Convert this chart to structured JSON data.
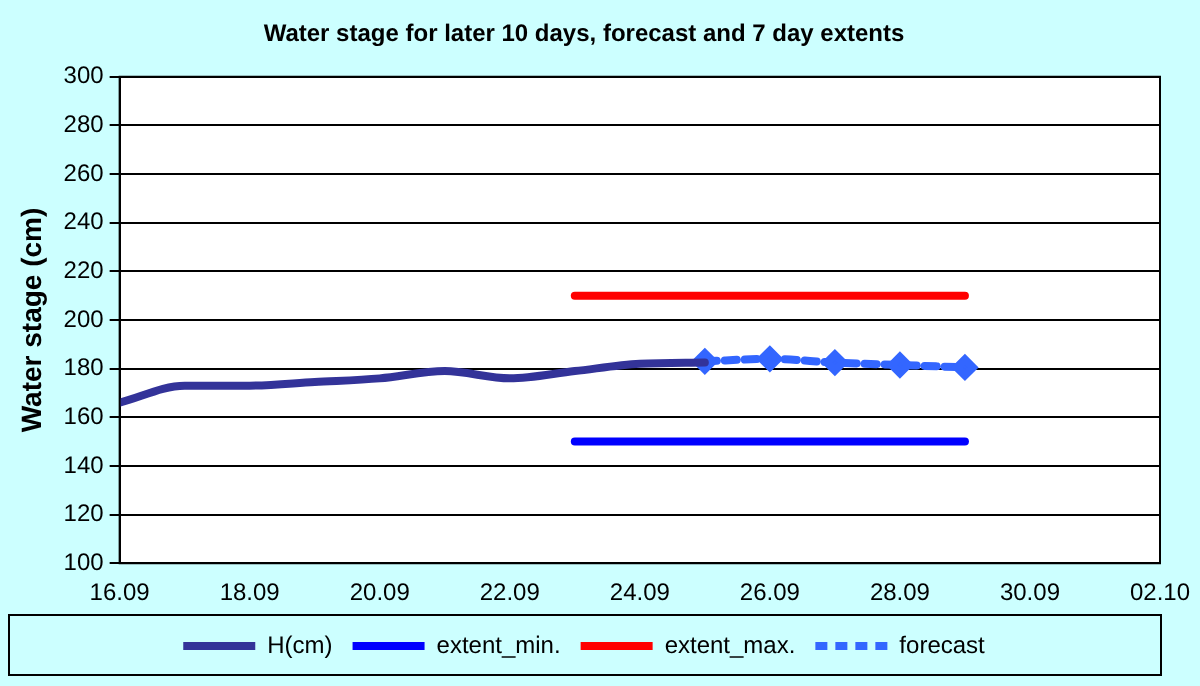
{
  "chart_data": {
    "type": "line",
    "title": "Water stage for later 10 days, forecast and 7 day extents",
    "ylabel": "Water stage (cm)",
    "xlim": [
      "--09-16",
      "--10-02"
    ],
    "xticks": [
      {
        "value": "--09-16",
        "label": "16.09"
      },
      {
        "value": "--09-18",
        "label": "18.09"
      },
      {
        "value": "--09-20",
        "label": "20.09"
      },
      {
        "value": "--09-22",
        "label": "22.09"
      },
      {
        "value": "--09-24",
        "label": "24.09"
      },
      {
        "value": "--09-26",
        "label": "26.09"
      },
      {
        "value": "--09-28",
        "label": "28.09"
      },
      {
        "value": "--09-30",
        "label": "30.09"
      },
      {
        "value": "--10-02",
        "label": "02.10"
      }
    ],
    "ylim": [
      100,
      300
    ],
    "yticks": [
      100,
      120,
      140,
      160,
      180,
      200,
      220,
      240,
      260,
      280,
      300
    ],
    "grid": "y",
    "legend": "bottom",
    "series": [
      {
        "name": "H(cm)",
        "color": "#333399",
        "marker": "none",
        "line_style": "solid",
        "x": [
          "--09-16",
          "--09-17",
          "--09-18",
          "--09-19",
          "--09-20",
          "--09-21",
          "--09-22",
          "--09-23",
          "--09-24",
          "--09-25"
        ],
        "values": [
          166,
          173,
          173,
          174.5,
          176,
          179,
          176,
          179,
          182,
          182.5
        ]
      },
      {
        "name": "extent_min.",
        "color": "#0000ff",
        "marker": "none",
        "line_style": "solid",
        "x": [
          "--09-23",
          "--09-29"
        ],
        "values": [
          150,
          150
        ]
      },
      {
        "name": "extent_max.",
        "color": "#ff0000",
        "marker": "none",
        "line_style": "solid",
        "x": [
          "--09-23",
          "--09-29"
        ],
        "values": [
          210,
          210
        ]
      },
      {
        "name": "forecast",
        "color": "#3366ff",
        "marker": "diamond",
        "line_style": "dashed",
        "x": [
          "--09-25",
          "--09-26",
          "--09-27",
          "--09-28",
          "--09-29"
        ],
        "values": [
          183,
          184,
          182.5,
          181.5,
          180.5
        ]
      }
    ]
  }
}
